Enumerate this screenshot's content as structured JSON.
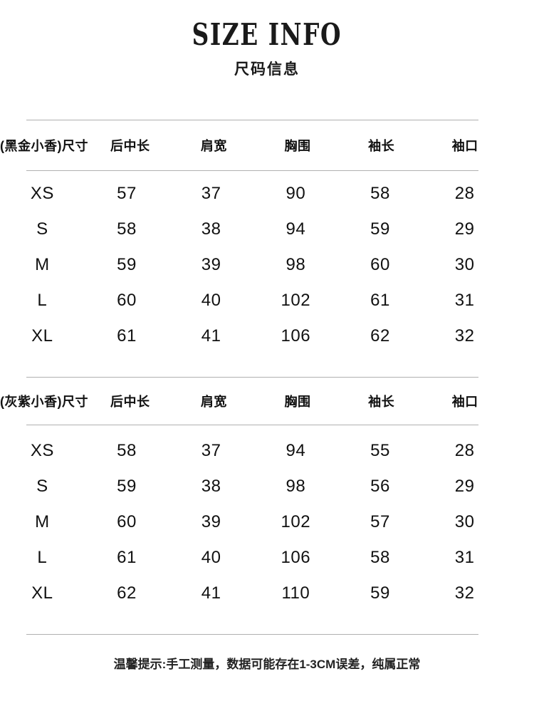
{
  "page": {
    "title": "SIZE INFO",
    "subtitle": "尺码信息",
    "footer_note": "温馨提示:手工测量，数据可能存在1-3CM误差，纯属正常"
  },
  "colors": {
    "text": "#111111",
    "rule": "#b0b0b0"
  },
  "tables": [
    {
      "name": "黑金小香",
      "columns": [
        "(黑金小香)尺寸",
        "后中长",
        "肩宽",
        "胸围",
        "袖长",
        "袖口"
      ],
      "rows": [
        {
          "size": "XS",
          "values": [
            "57",
            "37",
            "90",
            "58",
            "28"
          ]
        },
        {
          "size": "S",
          "values": [
            "58",
            "38",
            "94",
            "59",
            "29"
          ]
        },
        {
          "size": "M",
          "values": [
            "59",
            "39",
            "98",
            "60",
            "30"
          ]
        },
        {
          "size": "L",
          "values": [
            "60",
            "40",
            "102",
            "61",
            "31"
          ]
        },
        {
          "size": "XL",
          "values": [
            "61",
            "41",
            "106",
            "62",
            "32"
          ]
        }
      ]
    },
    {
      "name": "灰紫小香",
      "columns": [
        "(灰紫小香)尺寸",
        "后中长",
        "肩宽",
        "胸围",
        "袖长",
        "袖口"
      ],
      "rows": [
        {
          "size": "XS",
          "values": [
            "58",
            "37",
            "94",
            "55",
            "28"
          ]
        },
        {
          "size": "S",
          "values": [
            "59",
            "38",
            "98",
            "56",
            "29"
          ]
        },
        {
          "size": "M",
          "values": [
            "60",
            "39",
            "102",
            "57",
            "30"
          ]
        },
        {
          "size": "L",
          "values": [
            "61",
            "40",
            "106",
            "58",
            "31"
          ]
        },
        {
          "size": "XL",
          "values": [
            "62",
            "41",
            "110",
            "59",
            "32"
          ]
        }
      ]
    }
  ]
}
